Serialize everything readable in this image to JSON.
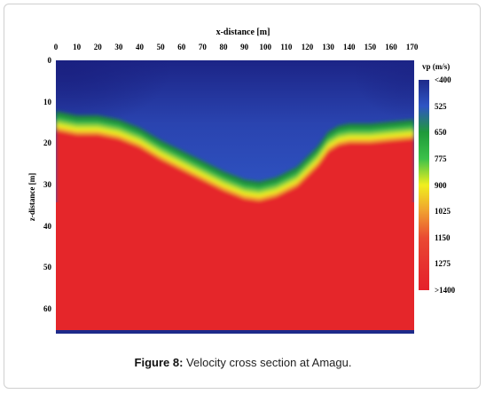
{
  "caption": {
    "prefix": "Figure 8:",
    "text": "Velocity cross section at Amagu."
  },
  "chart_data": {
    "type": "heatmap",
    "xlabel": "x-distance [m]",
    "ylabel": "z-distance [m]",
    "xlim": [
      0,
      171
    ],
    "ylim": [
      0,
      66
    ],
    "x_ticks": [
      0,
      10,
      20,
      30,
      40,
      50,
      60,
      70,
      80,
      90,
      100,
      110,
      120,
      130,
      140,
      150,
      160,
      170
    ],
    "y_ticks": [
      0,
      10,
      20,
      30,
      40,
      50,
      60
    ],
    "colorbar": {
      "title": "vp (m/s)",
      "labels": [
        "<400",
        "525",
        "650",
        "775",
        "900",
        "1025",
        "1150",
        "1275",
        ">1400"
      ],
      "colors": [
        "#1e2a8a",
        "#2f55c4",
        "#1f9a3a",
        "#3cc14a",
        "#f0ef1e",
        "#f0a030",
        "#ea4a32",
        "#e7322f",
        "#e5212b"
      ]
    },
    "layers": [
      {
        "name": "upper layer",
        "vp_range": "<400–650"
      },
      {
        "name": "lower layer",
        "vp_range": ">1400"
      }
    ],
    "interface_depth": {
      "x": [
        0,
        10,
        20,
        30,
        40,
        50,
        60,
        70,
        80,
        90,
        97,
        105,
        115,
        125,
        130,
        135,
        140,
        150,
        160,
        171
      ],
      "z": [
        15.5,
        16.5,
        16.5,
        17.5,
        19.5,
        22.5,
        25,
        27.5,
        30,
        32,
        32.5,
        31.5,
        29,
        24,
        20.5,
        19,
        18.5,
        18.5,
        18,
        17.5
      ]
    }
  }
}
